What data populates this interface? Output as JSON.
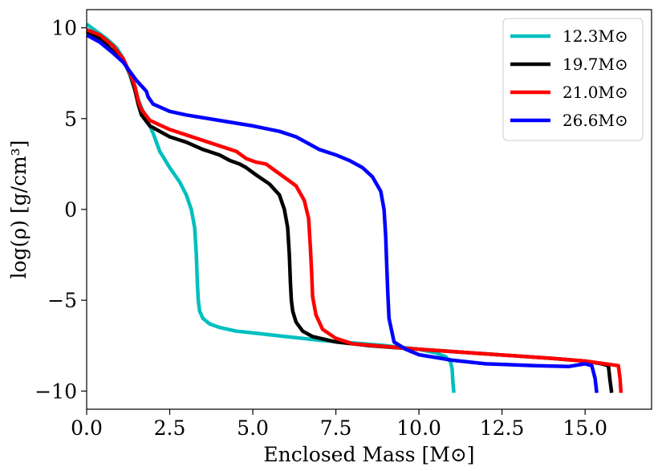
{
  "chart_data": {
    "type": "line",
    "title": "",
    "xlabel": "Enclosed Mass [M⊙]",
    "ylabel": "log(ρ) [g/cm³]",
    "xlim": [
      0,
      17.0
    ],
    "ylim": [
      -11,
      11
    ],
    "xticks": [
      0,
      2.5,
      5,
      7.5,
      10,
      12.5,
      15
    ],
    "xtick_labels": [
      "0.0",
      "2.5",
      "5.0",
      "7.5",
      "10.0",
      "12.5",
      "15.0"
    ],
    "yticks": [
      10,
      5,
      0,
      -5,
      -10
    ],
    "ytick_labels": [
      "10",
      "5",
      "0",
      "−5",
      "−10"
    ],
    "legend_position": "top-right",
    "series": [
      {
        "name": "12.3M⊙",
        "color": "#00bfbf",
        "x": [
          0,
          0.3,
          0.6,
          0.9,
          1.1,
          1.3,
          1.45,
          1.6,
          1.8,
          2.0,
          2.2,
          2.5,
          2.8,
          3.0,
          3.15,
          3.25,
          3.3,
          3.33,
          3.36,
          3.4,
          3.5,
          3.7,
          4.0,
          4.5,
          5.0,
          6.0,
          7.0,
          8.0,
          9.0,
          10.0,
          10.5,
          10.8,
          10.95,
          11.0,
          11.02,
          11.05
        ],
        "y": [
          10.2,
          9.8,
          9.4,
          8.9,
          8.3,
          7.4,
          6.6,
          5.8,
          5.0,
          4.2,
          3.2,
          2.3,
          1.5,
          0.8,
          0.0,
          -1.0,
          -2.5,
          -4.0,
          -5.0,
          -5.6,
          -6.0,
          -6.3,
          -6.5,
          -6.7,
          -6.8,
          -7.0,
          -7.2,
          -7.35,
          -7.5,
          -7.7,
          -7.9,
          -8.1,
          -8.4,
          -8.8,
          -9.5,
          -10.1
        ]
      },
      {
        "name": "19.7M⊙",
        "color": "#000000",
        "x": [
          0,
          0.4,
          0.8,
          1.1,
          1.3,
          1.45,
          1.55,
          1.65,
          1.9,
          2.5,
          3.0,
          3.5,
          4.0,
          4.3,
          4.6,
          4.8,
          5.1,
          5.5,
          5.8,
          5.95,
          6.05,
          6.1,
          6.13,
          6.16,
          6.2,
          6.3,
          6.5,
          6.8,
          7.5,
          8.5,
          10.0,
          12.0,
          14.0,
          15.0,
          15.5,
          15.7,
          15.75,
          15.8
        ],
        "y": [
          9.8,
          9.4,
          8.7,
          8.2,
          7.5,
          6.6,
          5.8,
          5.2,
          4.6,
          4.0,
          3.7,
          3.3,
          3.0,
          2.7,
          2.5,
          2.3,
          1.9,
          1.4,
          0.8,
          0.0,
          -1.0,
          -2.5,
          -4.0,
          -5.0,
          -5.6,
          -6.2,
          -6.7,
          -7.0,
          -7.3,
          -7.5,
          -7.7,
          -7.95,
          -8.2,
          -8.35,
          -8.5,
          -8.6,
          -9.4,
          -10.1
        ]
      },
      {
        "name": "21.0M⊙",
        "color": "#ff0000",
        "x": [
          0,
          0.4,
          0.8,
          1.1,
          1.3,
          1.45,
          1.55,
          1.65,
          1.9,
          2.5,
          3.0,
          3.5,
          4.0,
          4.5,
          4.8,
          5.1,
          5.4,
          5.7,
          6.0,
          6.3,
          6.55,
          6.68,
          6.73,
          6.77,
          6.8,
          6.9,
          7.1,
          7.5,
          8.0,
          9.0,
          10.0,
          12.0,
          14.0,
          15.0,
          15.6,
          16.0,
          16.05,
          16.08
        ],
        "y": [
          9.9,
          9.6,
          9.0,
          8.3,
          7.5,
          6.8,
          6.0,
          5.5,
          4.9,
          4.4,
          4.1,
          3.8,
          3.5,
          3.2,
          2.8,
          2.6,
          2.5,
          2.1,
          1.7,
          1.3,
          0.5,
          -0.5,
          -2.0,
          -3.5,
          -4.8,
          -5.8,
          -6.6,
          -7.1,
          -7.4,
          -7.55,
          -7.7,
          -7.95,
          -8.2,
          -8.35,
          -8.5,
          -8.6,
          -9.3,
          -10.1
        ]
      },
      {
        "name": "26.6M⊙",
        "color": "#0000ff",
        "x": [
          0,
          0.4,
          0.8,
          1.1,
          1.3,
          1.5,
          1.7,
          1.8,
          1.85,
          2.0,
          2.5,
          3.0,
          4.0,
          5.0,
          5.8,
          6.3,
          6.7,
          7.0,
          7.5,
          7.9,
          8.3,
          8.6,
          8.85,
          8.95,
          9.0,
          9.03,
          9.06,
          9.1,
          9.25,
          9.6,
          10.0,
          11.0,
          12.0,
          13.5,
          14.5,
          15.0,
          15.2,
          15.3,
          15.35
        ],
        "y": [
          9.6,
          9.2,
          8.6,
          8.1,
          7.6,
          7.1,
          6.7,
          6.5,
          6.2,
          5.8,
          5.4,
          5.2,
          4.9,
          4.6,
          4.3,
          4.0,
          3.6,
          3.3,
          3.0,
          2.7,
          2.3,
          1.8,
          1.0,
          0.0,
          -1.5,
          -3.0,
          -4.5,
          -6.0,
          -7.3,
          -7.7,
          -8.0,
          -8.3,
          -8.5,
          -8.6,
          -8.65,
          -8.5,
          -8.6,
          -9.3,
          -10.1
        ]
      }
    ]
  }
}
